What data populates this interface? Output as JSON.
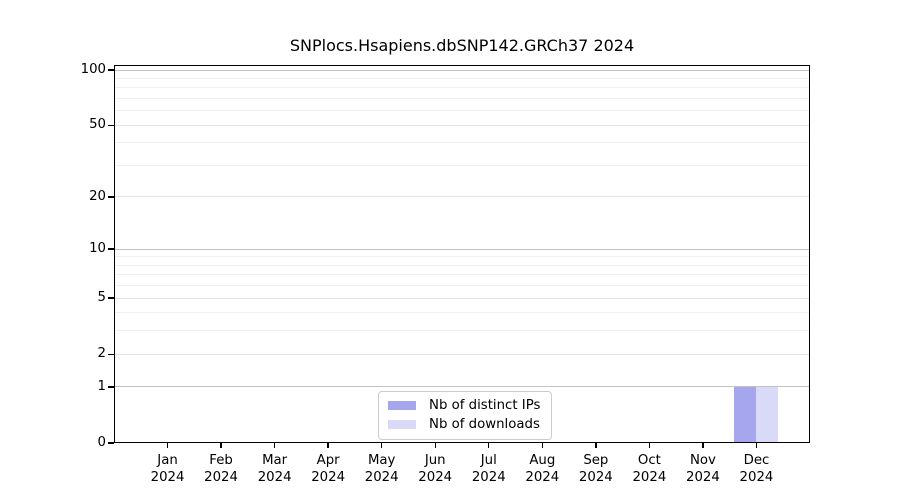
{
  "chart_data": {
    "type": "bar",
    "title": "SNPlocs.Hsapiens.dbSNP142.GRCh37 2024",
    "categories": [
      "Jan",
      "Feb",
      "Mar",
      "Apr",
      "May",
      "Jun",
      "Jul",
      "Aug",
      "Sep",
      "Oct",
      "Nov",
      "Dec"
    ],
    "category_year": "2024",
    "series": [
      {
        "name": "Nb of distinct IPs",
        "color": "#a6a6ef",
        "values": [
          0,
          0,
          0,
          0,
          0,
          0,
          0,
          0,
          0,
          0,
          0,
          1
        ]
      },
      {
        "name": "Nb of downloads",
        "color": "#d9d9f8",
        "values": [
          0,
          0,
          0,
          0,
          0,
          0,
          0,
          0,
          0,
          0,
          0,
          1
        ]
      }
    ],
    "xlabel": "",
    "ylabel": "",
    "yscale": "log1p",
    "ylim": [
      0,
      100
    ],
    "yticks": [
      0,
      1,
      2,
      5,
      10,
      20,
      50,
      100
    ],
    "minor_yticks": [
      3,
      4,
      6,
      7,
      8,
      9,
      30,
      40,
      60,
      70,
      80,
      90
    ],
    "grid": "on",
    "legend_position": "bottom-center",
    "grid_colors": {
      "decade": "#c2c2c2",
      "labeled": "#e3e3e3",
      "minor": "#f1f1f1"
    }
  }
}
